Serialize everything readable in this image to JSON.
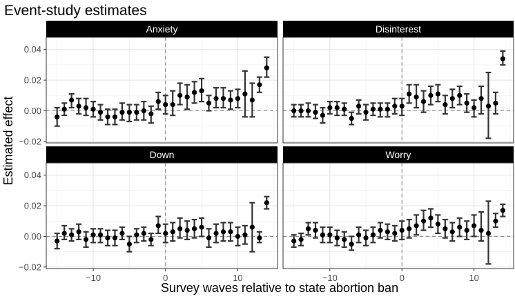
{
  "chart_data": {
    "type": "scatter",
    "subtype": "point-range (event-study estimates with error bars), faceted 2x2",
    "title": "Event-study estimates",
    "xlabel": "Survey waves relative to state abortion ban",
    "ylabel": "Estimated effect",
    "xlim": [
      -16.5,
      15.5
    ],
    "ylim": [
      -0.021,
      0.048
    ],
    "xticks": [
      -10,
      0,
      10
    ],
    "xtick_labels": [
      "-10",
      "0",
      "10"
    ],
    "yticks": [
      -0.02,
      0.0,
      0.02,
      0.04
    ],
    "ytick_labels": [
      "-0.02",
      "0.00",
      "0.02",
      "0.04"
    ],
    "vline_x": 0,
    "hline_y": 0,
    "grid": true,
    "colors": {
      "strip_bg": "#000000",
      "strip_text": "#ffffff",
      "point": "#000000",
      "errorbar": "#333333",
      "gridline": "#e3e3e3",
      "refline": "#808080",
      "panel_border": "#333333"
    },
    "panels": [
      {
        "name": "Anxiety",
        "x": [
          -15,
          -14,
          -13,
          -12,
          -11,
          -10,
          -9,
          -8,
          -7,
          -6,
          -5,
          -4,
          -3,
          -2,
          -1,
          0,
          1,
          2,
          3,
          4,
          5,
          6,
          7,
          8,
          9,
          10,
          11,
          12,
          13,
          14
        ],
        "y": [
          -0.004,
          0.001,
          0.007,
          0.003,
          0.002,
          0.001,
          -0.001,
          -0.004,
          -0.004,
          -0.001,
          -0.001,
          -0.001,
          0.0,
          -0.002,
          0.006,
          0.004,
          0.004,
          0.01,
          0.009,
          0.012,
          0.013,
          0.005,
          0.008,
          0.008,
          0.007,
          0.008,
          0.011,
          0.007,
          0.017,
          0.028
        ],
        "lo": [
          -0.01,
          -0.003,
          0.002,
          -0.002,
          -0.003,
          -0.004,
          -0.006,
          -0.009,
          -0.009,
          -0.006,
          -0.007,
          -0.006,
          -0.006,
          -0.008,
          0.001,
          -0.002,
          -0.003,
          0.004,
          0.001,
          0.005,
          0.006,
          0.0,
          0.002,
          0.002,
          0.001,
          0.002,
          -0.004,
          -0.004,
          0.012,
          0.022
        ],
        "hi": [
          0.002,
          0.005,
          0.011,
          0.008,
          0.008,
          0.006,
          0.004,
          0.001,
          0.001,
          0.005,
          0.004,
          0.004,
          0.006,
          0.003,
          0.012,
          0.01,
          0.013,
          0.018,
          0.017,
          0.019,
          0.021,
          0.01,
          0.015,
          0.015,
          0.013,
          0.014,
          0.026,
          0.018,
          0.022,
          0.035
        ]
      },
      {
        "name": "Disinterest",
        "x": [
          -15,
          -14,
          -13,
          -12,
          -11,
          -10,
          -9,
          -8,
          -7,
          -6,
          -5,
          -4,
          -3,
          -2,
          -1,
          0,
          1,
          2,
          3,
          4,
          5,
          6,
          7,
          8,
          9,
          10,
          11,
          12,
          13,
          14
        ],
        "y": [
          0.0,
          0.0,
          0.0,
          -0.001,
          -0.003,
          0.002,
          0.002,
          0.001,
          -0.005,
          0.003,
          -0.001,
          0.001,
          0.001,
          0.001,
          0.003,
          0.003,
          0.011,
          0.009,
          0.006,
          0.01,
          0.011,
          0.004,
          0.008,
          0.01,
          0.005,
          0.002,
          0.008,
          0.003,
          0.005,
          0.034
        ],
        "lo": [
          -0.004,
          -0.004,
          -0.004,
          -0.005,
          -0.008,
          -0.002,
          -0.003,
          -0.003,
          -0.009,
          -0.002,
          -0.006,
          -0.003,
          -0.004,
          -0.004,
          -0.002,
          -0.003,
          0.005,
          0.002,
          -0.001,
          0.004,
          0.006,
          -0.002,
          0.002,
          0.004,
          -0.001,
          -0.004,
          -0.002,
          -0.018,
          -0.002,
          0.03
        ],
        "hi": [
          0.004,
          0.004,
          0.005,
          0.004,
          0.002,
          0.006,
          0.006,
          0.005,
          -0.001,
          0.007,
          0.004,
          0.005,
          0.005,
          0.005,
          0.008,
          0.008,
          0.017,
          0.017,
          0.013,
          0.016,
          0.017,
          0.01,
          0.014,
          0.016,
          0.011,
          0.007,
          0.016,
          0.025,
          0.012,
          0.039
        ]
      },
      {
        "name": "Down",
        "x": [
          -15,
          -14,
          -13,
          -12,
          -11,
          -10,
          -9,
          -8,
          -7,
          -6,
          -5,
          -4,
          -3,
          -2,
          -1,
          0,
          1,
          2,
          3,
          4,
          5,
          6,
          7,
          8,
          9,
          10,
          11,
          12,
          13,
          14
        ],
        "y": [
          -0.003,
          0.002,
          0.001,
          0.003,
          -0.002,
          0.001,
          0.001,
          -0.001,
          -0.001,
          0.002,
          -0.005,
          0.001,
          0.002,
          -0.002,
          0.007,
          0.002,
          0.003,
          0.005,
          0.004,
          0.005,
          0.006,
          -0.001,
          0.002,
          0.003,
          0.003,
          0.0,
          0.001,
          0.006,
          -0.001,
          0.022
        ],
        "lo": [
          -0.008,
          -0.002,
          -0.003,
          -0.002,
          -0.007,
          -0.004,
          -0.004,
          -0.006,
          -0.006,
          -0.002,
          -0.01,
          -0.004,
          -0.003,
          -0.006,
          0.002,
          -0.004,
          -0.003,
          -0.001,
          -0.002,
          -0.001,
          0.0,
          -0.007,
          -0.004,
          -0.003,
          -0.003,
          -0.006,
          -0.005,
          -0.01,
          -0.004,
          0.018
        ],
        "hi": [
          0.002,
          0.007,
          0.005,
          0.008,
          0.003,
          0.005,
          0.005,
          0.004,
          0.004,
          0.006,
          0.0,
          0.005,
          0.006,
          0.002,
          0.013,
          0.008,
          0.009,
          0.012,
          0.01,
          0.011,
          0.012,
          0.005,
          0.008,
          0.009,
          0.009,
          0.006,
          0.007,
          0.022,
          0.003,
          0.026
        ]
      },
      {
        "name": "Worry",
        "x": [
          -15,
          -14,
          -13,
          -12,
          -11,
          -10,
          -9,
          -8,
          -7,
          -6,
          -5,
          -4,
          -3,
          -2,
          -1,
          0,
          1,
          2,
          3,
          4,
          5,
          6,
          7,
          8,
          9,
          10,
          11,
          12,
          13,
          14
        ],
        "y": [
          -0.003,
          -0.002,
          0.005,
          0.004,
          0.001,
          0.001,
          -0.001,
          -0.002,
          -0.005,
          0.001,
          -0.001,
          0.001,
          0.004,
          0.003,
          0.002,
          0.004,
          0.005,
          0.007,
          0.01,
          0.012,
          0.008,
          0.005,
          0.003,
          0.006,
          0.004,
          0.007,
          0.004,
          0.002,
          0.01,
          0.017
        ],
        "lo": [
          -0.007,
          -0.006,
          0.001,
          -0.001,
          -0.004,
          -0.004,
          -0.006,
          -0.007,
          -0.009,
          -0.004,
          -0.006,
          -0.004,
          -0.001,
          -0.002,
          -0.003,
          -0.002,
          -0.001,
          0.001,
          0.004,
          0.006,
          0.002,
          -0.001,
          -0.003,
          0.0,
          -0.002,
          0.0,
          -0.003,
          -0.018,
          0.006,
          0.013
        ],
        "hi": [
          0.001,
          0.002,
          0.009,
          0.009,
          0.006,
          0.006,
          0.004,
          0.003,
          0.0,
          0.006,
          0.004,
          0.006,
          0.009,
          0.008,
          0.007,
          0.01,
          0.011,
          0.014,
          0.017,
          0.018,
          0.014,
          0.011,
          0.009,
          0.012,
          0.01,
          0.014,
          0.016,
          0.023,
          0.015,
          0.021
        ]
      }
    ]
  }
}
